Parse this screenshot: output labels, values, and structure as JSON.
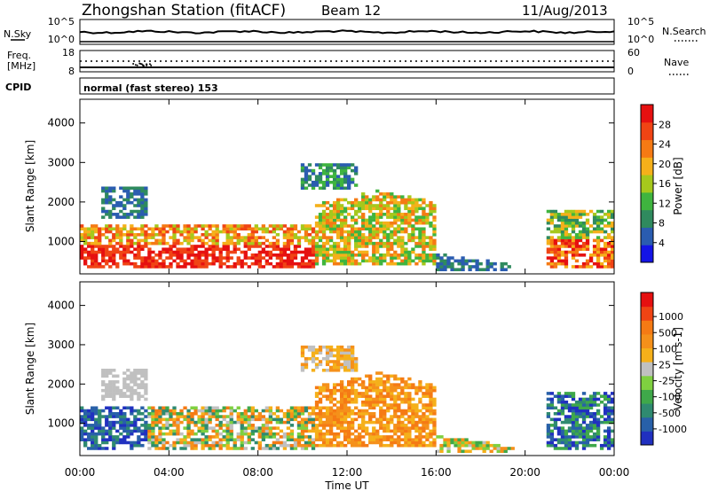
{
  "header": {
    "title": "Zhongshan Station (fitACF)",
    "beam": "Beam 12",
    "date": "11/Aug/2013"
  },
  "status_panels": {
    "nsky_label": "N.Sky",
    "nsearch_label": "N.Search",
    "noise_ticks": [
      "10^5",
      "10^0"
    ],
    "freq_label_line1": "Freq.",
    "freq_label_line2": "[MHz]",
    "freq_ticks": [
      "18",
      "8"
    ],
    "nave_label": "Nave",
    "nave_ticks": [
      "60",
      "0"
    ],
    "cpid_label": "CPID",
    "cpid_value": "normal (fast stereo) 153"
  },
  "chart_data": [
    {
      "type": "heatmap",
      "panel": "power",
      "ylabel": "Slant Range [km]",
      "xlabel": "Time UT",
      "xlim": [
        "00:00",
        "24:00"
      ],
      "ylim": [
        180,
        4600
      ],
      "x_ticks": [
        "00:00",
        "04:00",
        "08:00",
        "12:00",
        "16:00",
        "20:00",
        "00:00"
      ],
      "y_ticks": [
        1000,
        2000,
        3000,
        4000
      ],
      "colorbar": {
        "label": "Power [dB]",
        "ticks": [
          4,
          8,
          12,
          16,
          20,
          24,
          28
        ],
        "colors": [
          "#1414e6",
          "#2a5cb0",
          "#2f8a5e",
          "#3fb43f",
          "#a6c81c",
          "#f5b01a",
          "#f57a14",
          "#f04414",
          "#e61010"
        ]
      }
    },
    {
      "type": "heatmap",
      "panel": "velocity",
      "ylabel": "Slant Range [km]",
      "xlabel": "Time UT",
      "xlim": [
        "00:00",
        "24:00"
      ],
      "ylim": [
        180,
        4600
      ],
      "x_ticks": [
        "00:00",
        "04:00",
        "08:00",
        "12:00",
        "16:00",
        "20:00",
        "00:00"
      ],
      "y_ticks": [
        1000,
        2000,
        3000,
        4000
      ],
      "colorbar": {
        "label": "Velocity [m s-1]",
        "ticks": [
          1000,
          500,
          100,
          25,
          -25,
          -100,
          -500,
          -1000
        ],
        "colors": [
          "#2030c0",
          "#2860a8",
          "#2f8a70",
          "#3fa84a",
          "#7fd040",
          "#c0c0c0",
          "#f5b01a",
          "#f5901a",
          "#f57a14",
          "#f04414",
          "#e61010"
        ]
      }
    }
  ]
}
